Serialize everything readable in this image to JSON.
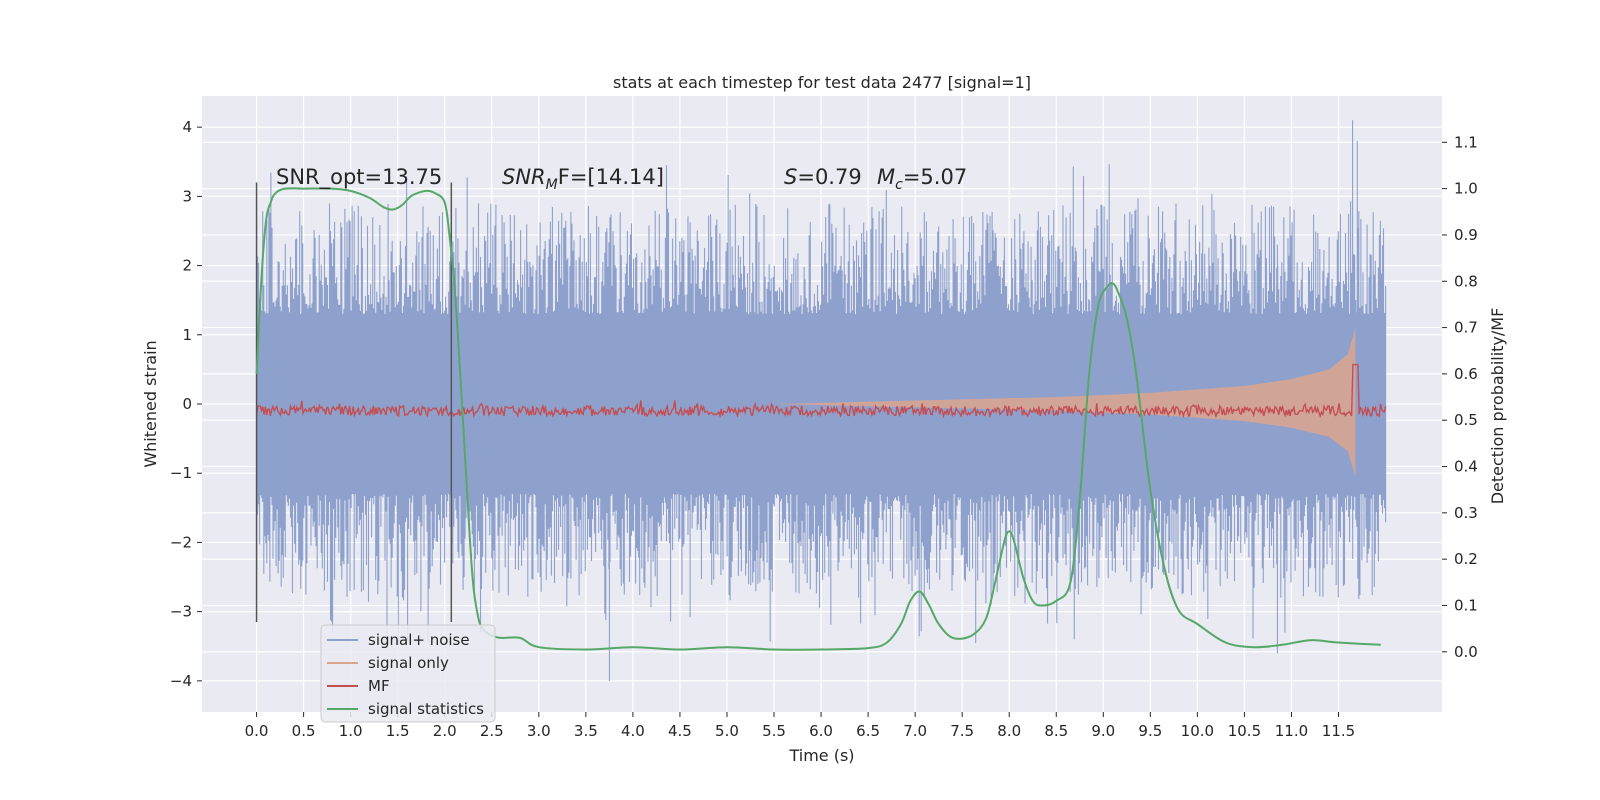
{
  "chart_data": {
    "type": "line",
    "title": "stats at each timestep for test data 2477 [signal=1]",
    "xlabel": "Time (s)",
    "ylabel": "Whitened strain",
    "y2label": "Detection probability/MF",
    "xlim": [
      -0.58,
      12.6
    ],
    "ylim": [
      -4.45,
      4.45
    ],
    "y2lim": [
      -0.13,
      1.2
    ],
    "x_ticks": [
      "0.0",
      "0.5",
      "1.0",
      "1.5",
      "2.0",
      "2.5",
      "3.0",
      "3.5",
      "4.0",
      "4.5",
      "5.0",
      "5.5",
      "6.0",
      "6.5",
      "7.0",
      "7.5",
      "8.0",
      "8.5",
      "9.0",
      "9.5",
      "10.0",
      "10.5",
      "11.0",
      "11.5"
    ],
    "y_ticks": [
      "4",
      "3",
      "2",
      "1",
      "0",
      "−1",
      "−2",
      "−3",
      "−4"
    ],
    "y2_ticks": [
      "1.1",
      "1.0",
      "0.9",
      "0.8",
      "0.7",
      "0.6",
      "0.5",
      "0.4",
      "0.3",
      "0.2",
      "0.1",
      "0.0"
    ],
    "annotations": {
      "snr_opt": "SNR_opt=13.75",
      "snr_mf_main": "SNR",
      "snr_mf_sub": "M",
      "snr_mf_tail": "F=[14.14]",
      "s_main": "S",
      "s_tail": "=0.79",
      "mc_main": "M",
      "mc_sub": "c",
      "mc_tail": "=5.07"
    },
    "vlines_x": [
      0.0,
      2.07
    ],
    "legend": {
      "placement": "lower-left",
      "entries": [
        "signal+ noise",
        "signal only",
        "MF",
        "signal statistics"
      ]
    },
    "series": [
      {
        "name": "signal+ noise",
        "color": "#8ea1cc",
        "x_range": [
          0.0,
          12.0
        ],
        "band": [
          -1.3,
          1.3
        ],
        "spike_range": [
          -4.0,
          4.1
        ]
      },
      {
        "name": "signal only",
        "color": "#dda58e",
        "envelope": {
          "x": [
            5.5,
            7.0,
            8.5,
            9.5,
            10.5,
            11.0,
            11.4,
            11.6,
            11.68
          ],
          "amp": [
            0.0,
            0.05,
            0.1,
            0.16,
            0.26,
            0.36,
            0.5,
            0.72,
            1.1
          ]
        }
      },
      {
        "name": "MF",
        "color": "#c44e52",
        "x_range": [
          0.0,
          12.0
        ],
        "baseline": 0.52,
        "peak": {
          "x": 11.68,
          "y": 0.62
        }
      },
      {
        "name": "signal statistics",
        "color": "#55a868",
        "x": [
          0.0,
          0.05,
          0.1,
          0.15,
          0.2,
          0.3,
          0.5,
          0.8,
          1.0,
          1.2,
          1.35,
          1.45,
          1.55,
          1.65,
          1.8,
          1.9,
          2.0,
          2.05,
          2.1,
          2.15,
          2.2,
          2.25,
          2.3,
          2.35,
          2.4,
          2.5,
          2.6,
          2.8,
          3.0,
          3.5,
          4.0,
          4.5,
          5.0,
          5.5,
          6.0,
          6.5,
          6.7,
          6.85,
          6.95,
          7.05,
          7.15,
          7.25,
          7.4,
          7.6,
          7.75,
          7.85,
          7.95,
          8.0,
          8.05,
          8.15,
          8.25,
          8.35,
          8.5,
          8.65,
          8.75,
          8.85,
          8.95,
          9.05,
          9.1,
          9.15,
          9.25,
          9.35,
          9.5,
          9.65,
          9.8,
          10.0,
          10.3,
          10.6,
          10.9,
          11.2,
          11.5,
          11.95
        ],
        "y": [
          0.6,
          0.8,
          0.93,
          0.97,
          0.99,
          1.0,
          1.0,
          1.0,
          0.995,
          0.98,
          0.96,
          0.955,
          0.965,
          0.985,
          0.995,
          0.99,
          0.97,
          0.9,
          0.8,
          0.65,
          0.48,
          0.3,
          0.15,
          0.08,
          0.05,
          0.035,
          0.03,
          0.03,
          0.01,
          0.005,
          0.01,
          0.005,
          0.01,
          0.005,
          0.005,
          0.008,
          0.02,
          0.06,
          0.11,
          0.13,
          0.1,
          0.06,
          0.03,
          0.035,
          0.07,
          0.15,
          0.24,
          0.26,
          0.24,
          0.16,
          0.11,
          0.1,
          0.11,
          0.15,
          0.33,
          0.6,
          0.75,
          0.79,
          0.795,
          0.78,
          0.72,
          0.6,
          0.35,
          0.18,
          0.09,
          0.06,
          0.02,
          0.01,
          0.015,
          0.025,
          0.02,
          0.015
        ]
      }
    ]
  }
}
